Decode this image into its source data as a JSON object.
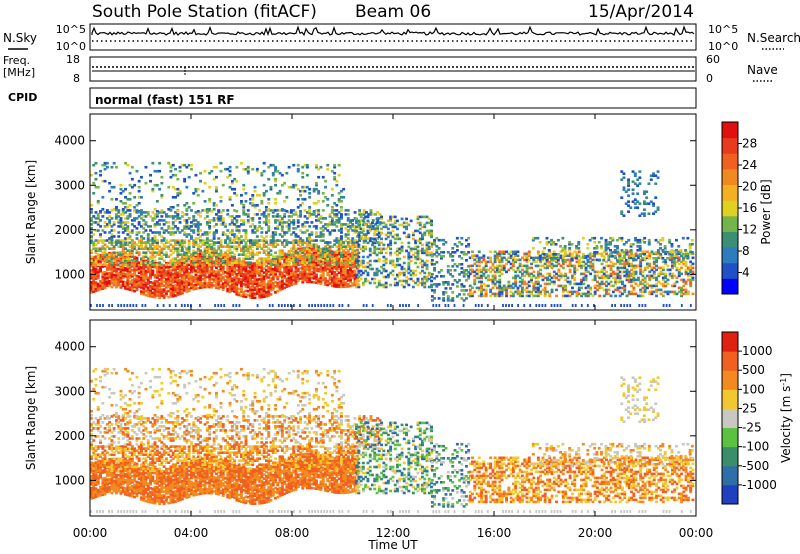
{
  "header": {
    "title": "South Pole Station (fitACF)",
    "beam": "Beam 06",
    "date": "15/Apr/2014"
  },
  "sky_panel": {
    "left_label": "N.Sky",
    "right_label": "N.Search",
    "left_ticks": [
      "10^5",
      "10^0"
    ],
    "right_ticks": [
      "10^5",
      "10^0"
    ]
  },
  "freq_panel": {
    "left_label_1": "Freq.",
    "left_label_2": "[MHz]",
    "right_label": "Nave",
    "left_ticks": [
      "18",
      "8"
    ],
    "right_ticks": [
      "60",
      "0"
    ]
  },
  "cpid": {
    "label": "CPID",
    "value": "normal (fast) 151 RF"
  },
  "chart_data": [
    {
      "type": "heatmap",
      "name": "power",
      "ylabel": "Slant Range [km]",
      "xlim": [
        0,
        24
      ],
      "ylim": [
        200,
        4600
      ],
      "y_ticks": [
        "1000",
        "2000",
        "3000",
        "4000"
      ],
      "colorbar": {
        "label": "Power [dB]",
        "ticks": [
          "4",
          "8",
          "12",
          "16",
          "20",
          "24",
          "28"
        ],
        "range": [
          0,
          32
        ],
        "colors": [
          "#0000ff",
          "#1f50c8",
          "#2f7bbf",
          "#3c8f74",
          "#74b44a",
          "#e0d020",
          "#f2b022",
          "#f08a20",
          "#f06020",
          "#e83a1c",
          "#e01010"
        ]
      }
    },
    {
      "type": "heatmap",
      "name": "velocity",
      "ylabel": "Slant Range [km]",
      "xlim": [
        0,
        24
      ],
      "ylim": [
        200,
        4600
      ],
      "y_ticks": [
        "1000",
        "2000",
        "3000",
        "4000"
      ],
      "colorbar": {
        "label": "Velocity [m s",
        "label_exp": "-1",
        "label_end": "]",
        "ticks": [
          "1000",
          "500",
          "100",
          "25",
          "-25",
          "-100",
          "-500",
          "-1000"
        ],
        "colors": [
          "#2040c0",
          "#2f6fa8",
          "#3a8f6a",
          "#5cc040",
          "#c8c8c0",
          "#f2c830",
          "#f28a20",
          "#f06020",
          "#e02010"
        ]
      }
    }
  ],
  "x_axis": {
    "title": "Time UT",
    "ticks": [
      "00:00",
      "04:00",
      "08:00",
      "12:00",
      "16:00",
      "20:00",
      "00:00"
    ]
  }
}
